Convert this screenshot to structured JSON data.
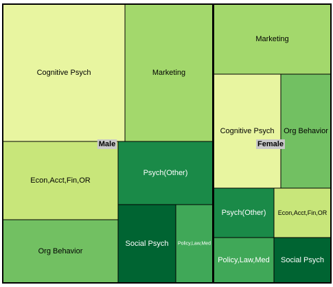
{
  "chart_data": {
    "type": "treemap",
    "colors": {
      "very_light": "#e8f5a0",
      "light": "#c8e67a",
      "mid": "#a3d86c",
      "mid_dark": "#72c062",
      "darker": "#40a858",
      "dark": "#1a8a48",
      "darkest": "#006432",
      "border": "#000000",
      "label_bg": "#c8c8c8"
    },
    "groups": [
      {
        "name": "Male",
        "children": [
          {
            "name": "Cognitive Psych",
            "color": "very_light"
          },
          {
            "name": "Marketing",
            "color": "mid"
          },
          {
            "name": "Econ,Acct,Fin,OR",
            "color": "light"
          },
          {
            "name": "Psych(Other)",
            "color": "dark"
          },
          {
            "name": "Org Behavior",
            "color": "mid_dark"
          },
          {
            "name": "Social Psych",
            "color": "darkest"
          },
          {
            "name": "Policy,Law,Med",
            "color": "darker"
          }
        ]
      },
      {
        "name": "Female",
        "children": [
          {
            "name": "Marketing",
            "color": "mid"
          },
          {
            "name": "Cognitive Psych",
            "color": "very_light"
          },
          {
            "name": "Org Behavior",
            "color": "mid_dark"
          },
          {
            "name": "Psych(Other)",
            "color": "dark"
          },
          {
            "name": "Econ,Acct,Fin,OR",
            "color": "light"
          },
          {
            "name": "Policy,Law,Med",
            "color": "darker"
          },
          {
            "name": "Social Psych",
            "color": "darkest"
          }
        ]
      }
    ]
  }
}
